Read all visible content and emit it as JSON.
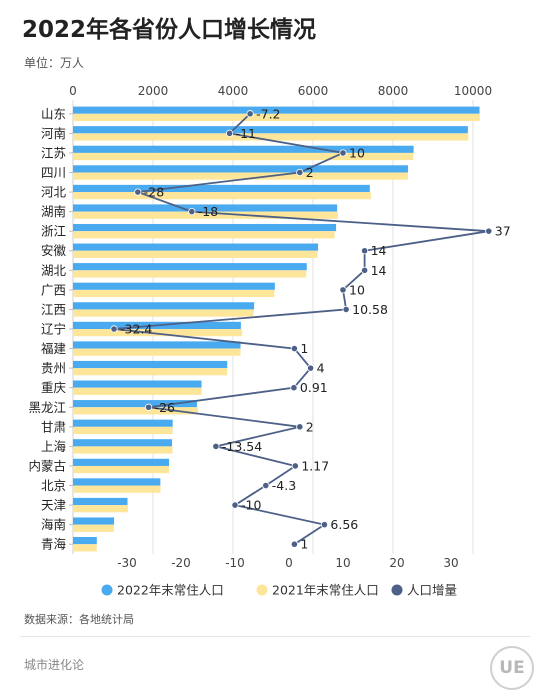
{
  "title": "2022年各省份人口增长情况",
  "unit_label": "单位：万人",
  "source": "数据来源：各地统计局",
  "brand": "城市进化论",
  "logo_text": "UE",
  "chart_data": {
    "type": "bar",
    "orientation": "horizontal",
    "categories": [
      "山东",
      "河南",
      "江苏",
      "四川",
      "河北",
      "湖南",
      "浙江",
      "安徽",
      "湖北",
      "广西",
      "江西",
      "辽宁",
      "福建",
      "贵州",
      "重庆",
      "黑龙江",
      "甘肃",
      "上海",
      "内蒙古",
      "北京",
      "天津",
      "海南",
      "青海"
    ],
    "series": [
      {
        "name": "2022年末常住人口",
        "axis": "top",
        "color": "#4aaaf0",
        "values": [
          10163,
          9872,
          8515,
          8374,
          7420,
          6604,
          6577,
          6127,
          5844,
          5047,
          4528,
          4197,
          4188,
          3856,
          3213,
          3099,
          2492,
          2476,
          2401,
          2184,
          1363,
          1027,
          595
        ]
      },
      {
        "name": "2021年末常住人口",
        "axis": "top",
        "color": "#fde59a",
        "values": [
          10170,
          9883,
          8505,
          8372,
          7448,
          6622,
          6540,
          6113,
          5830,
          5037,
          4517,
          4229,
          4187,
          3852,
          3212,
          3125,
          2490,
          2489,
          2400,
          2189,
          1373,
          1020,
          594
        ]
      },
      {
        "name": "人口增量",
        "axis": "bottom",
        "type": "line",
        "color": "#4c6088",
        "values": [
          -7.2,
          -11,
          10,
          2,
          -28,
          -18,
          37,
          14,
          14,
          10,
          10.58,
          -32.4,
          1,
          4,
          0.91,
          -26,
          2,
          -13.54,
          1.17,
          -4.3,
          -10,
          6.56,
          1
        ],
        "labels": [
          "-7.2",
          "-11",
          "10",
          "2",
          "-28",
          "-18",
          "37",
          "14",
          "14",
          "10",
          "10.58",
          "-32.4",
          "1",
          "4",
          "0.91",
          "-26",
          "2",
          "-13.54",
          "1.17",
          "-4.3",
          "-10",
          "6.56",
          "1"
        ]
      }
    ],
    "top_axis": {
      "min": 0,
      "max": 10800,
      "ticks": [
        "0",
        "2000",
        "4000",
        "6000",
        "8000",
        "10000"
      ],
      "tick_values": [
        0,
        2000,
        4000,
        6000,
        8000,
        10000
      ]
    },
    "bottom_axis": {
      "min": -40,
      "max": 40,
      "ticks": [
        "-30",
        "-20",
        "-10",
        "0",
        "10",
        "20",
        "30"
      ],
      "tick_values": [
        -30,
        -20,
        -10,
        0,
        10,
        20,
        30
      ]
    },
    "grid": true,
    "legend_position": "bottom"
  }
}
